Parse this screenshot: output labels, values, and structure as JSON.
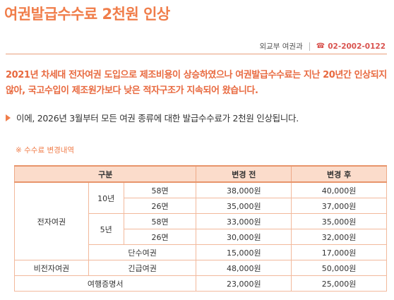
{
  "title": "여권발급수수료 2천원 인상",
  "meta": {
    "department": "외교부 여권과",
    "phone_icon": "☎",
    "phone": "02-2002-0122"
  },
  "lead_text": "2021년 차세대 전자여권 도입으로 제조비용이 상승하였으나 여권발급수수료는 지난 20년간 인상되지 않아, 국고수입이 제조원가보다 낮은 적자구조가 지속되어 왔습니다.",
  "bullet_text": "이에, 2026년 3월부터 모든 여권 종류에 대한 발급수수료가 2천원 인상됩니다.",
  "note": "※ 수수료 변경내역",
  "table": {
    "headers": {
      "category": "구분",
      "before": "변경 전",
      "after": "변경 후"
    },
    "electronic": "전자여권",
    "ten_year": "10년",
    "five_year": "5년",
    "non_electronic": "비전자여권",
    "rows": [
      {
        "label": "58면",
        "before": "38,000원",
        "after": "40,000원"
      },
      {
        "label": "26면",
        "before": "35,000원",
        "after": "37,000원"
      },
      {
        "label": "58면",
        "before": "33,000원",
        "after": "35,000원"
      },
      {
        "label": "26면",
        "before": "30,000원",
        "after": "32,000원"
      },
      {
        "label": "단수여권",
        "before": "15,000원",
        "after": "17,000원"
      },
      {
        "label": "긴급여권",
        "before": "48,000원",
        "after": "50,000원"
      },
      {
        "label": "여행증명서",
        "before": "23,000원",
        "after": "25,000원"
      }
    ]
  }
}
